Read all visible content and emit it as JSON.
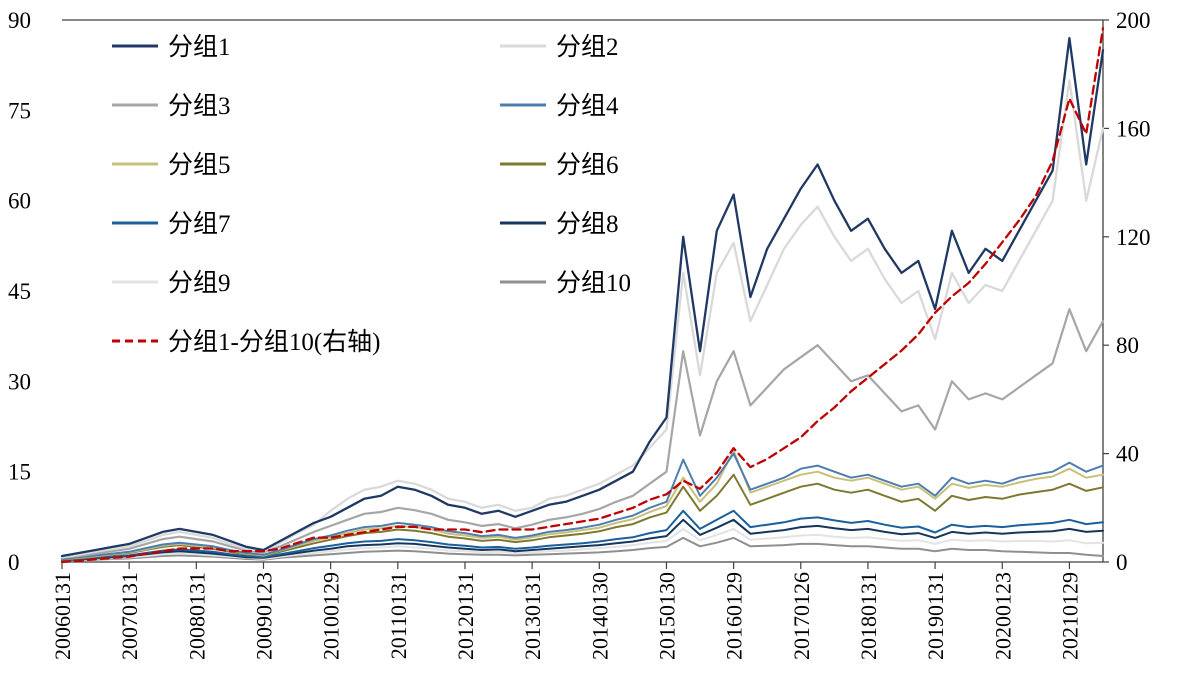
{
  "page": {
    "background": "#FFFFFF"
  },
  "chart_data": {
    "type": "line",
    "title": "",
    "legend_position": "top-left",
    "grid": false,
    "x_count": 63,
    "x_ticks_every": 4,
    "x_tick_labels": [
      "20060131",
      "20070131",
      "20080131",
      "20090123",
      "20100129",
      "20110131",
      "20120131",
      "20130131",
      "20140130",
      "20150130",
      "20160129",
      "20170126",
      "20180131",
      "20190131",
      "20200123",
      "20210129"
    ],
    "left_axis": {
      "min": 0,
      "max": 90,
      "ticks": [
        0,
        15,
        30,
        45,
        60,
        75,
        90
      ]
    },
    "right_axis": {
      "min": 0,
      "max": 200,
      "ticks": [
        0,
        40,
        80,
        120,
        160,
        200
      ]
    },
    "series": [
      {
        "name": "分组1",
        "color": "#1F3864",
        "axis": "left",
        "dashed": false,
        "width": 2.3,
        "values": [
          1.0,
          1.5,
          2.0,
          2.5,
          3.0,
          4.0,
          5.0,
          5.5,
          5.0,
          4.5,
          3.5,
          2.5,
          2.0,
          3.5,
          5.0,
          6.5,
          7.5,
          9.0,
          10.5,
          11.0,
          12.5,
          12.0,
          11.0,
          9.5,
          9.0,
          8.0,
          8.5,
          7.5,
          8.5,
          9.5,
          10.0,
          11.0,
          12.0,
          13.5,
          15.0,
          20.0,
          24.0,
          54.0,
          35.0,
          55.0,
          61.0,
          44.0,
          52.0,
          57.0,
          62.0,
          66.0,
          60.0,
          55.0,
          57.0,
          52.0,
          48.0,
          50.0,
          42.0,
          55.0,
          48.0,
          52.0,
          50.0,
          55.0,
          60.0,
          65.0,
          87.0,
          66.0,
          85.0
        ]
      },
      {
        "name": "分组2",
        "color": "#D9D9D9",
        "axis": "left",
        "dashed": false,
        "width": 2.3,
        "values": [
          0.8,
          1.2,
          1.7,
          2.2,
          2.6,
          3.5,
          4.5,
          5.0,
          4.5,
          4.0,
          3.0,
          2.2,
          1.8,
          3.2,
          4.8,
          6.2,
          8.5,
          10.5,
          12.0,
          12.5,
          13.5,
          13.0,
          12.0,
          10.5,
          10.0,
          9.0,
          9.5,
          8.5,
          9.0,
          10.5,
          11.0,
          12.0,
          13.0,
          14.5,
          16.0,
          19.0,
          22.0,
          48.0,
          31.0,
          48.0,
          53.0,
          40.0,
          46.0,
          52.0,
          56.0,
          59.0,
          54.0,
          50.0,
          52.0,
          47.0,
          43.0,
          45.0,
          37.0,
          48.0,
          43.0,
          46.0,
          45.0,
          50.0,
          55.0,
          60.0,
          80.0,
          60.0,
          72.0
        ]
      },
      {
        "name": "分组3",
        "color": "#A6A6A6",
        "axis": "left",
        "dashed": false,
        "width": 2.2,
        "values": [
          0.7,
          1.0,
          1.4,
          1.8,
          2.2,
          3.0,
          3.8,
          4.2,
          3.8,
          3.4,
          2.6,
          1.9,
          1.6,
          2.6,
          3.8,
          5.0,
          6.0,
          7.0,
          8.0,
          8.3,
          9.0,
          8.6,
          8.0,
          7.0,
          6.6,
          6.0,
          6.3,
          5.6,
          6.2,
          7.0,
          7.4,
          8.0,
          8.8,
          10.0,
          11.0,
          13.0,
          15.0,
          35.0,
          21.0,
          30.0,
          35.0,
          26.0,
          29.0,
          32.0,
          34.0,
          36.0,
          33.0,
          30.0,
          31.0,
          28.0,
          25.0,
          26.0,
          22.0,
          30.0,
          27.0,
          28.0,
          27.0,
          29.0,
          31.0,
          33.0,
          42.0,
          35.0,
          40.0
        ]
      },
      {
        "name": "分组4",
        "color": "#4D7EAF",
        "axis": "left",
        "dashed": false,
        "width": 2,
        "values": [
          0.5,
          0.8,
          1.1,
          1.4,
          1.7,
          2.3,
          2.9,
          3.2,
          2.9,
          2.6,
          2.0,
          1.5,
          1.2,
          2.0,
          2.9,
          3.8,
          4.4,
          5.2,
          5.8,
          6.0,
          6.5,
          6.2,
          5.8,
          5.1,
          4.8,
          4.3,
          4.5,
          4.0,
          4.4,
          5.0,
          5.3,
          5.7,
          6.2,
          7.0,
          7.7,
          9.0,
          10.0,
          17.0,
          11.0,
          14.0,
          18.0,
          12.0,
          13.0,
          14.0,
          15.5,
          16.0,
          15.0,
          14.0,
          14.5,
          13.5,
          12.5,
          13.0,
          11.0,
          14.0,
          13.0,
          13.5,
          13.0,
          14.0,
          14.5,
          15.0,
          16.5,
          15.0,
          16.0
        ]
      },
      {
        "name": "分组5",
        "color": "#C8BF7B",
        "axis": "left",
        "dashed": false,
        "width": 2,
        "values": [
          0.5,
          0.7,
          1.0,
          1.3,
          1.6,
          2.1,
          2.7,
          3.0,
          2.7,
          2.4,
          1.9,
          1.4,
          1.1,
          1.9,
          2.7,
          3.5,
          4.1,
          4.8,
          5.4,
          5.6,
          6.0,
          5.8,
          5.4,
          4.7,
          4.4,
          4.0,
          4.2,
          3.7,
          4.1,
          4.6,
          4.9,
          5.3,
          5.7,
          6.5,
          7.1,
          8.3,
          9.3,
          14.0,
          10.0,
          13.0,
          18.5,
          11.5,
          12.5,
          13.5,
          14.5,
          15.0,
          14.0,
          13.5,
          14.0,
          13.0,
          12.0,
          12.5,
          10.5,
          13.0,
          12.3,
          12.8,
          12.5,
          13.2,
          13.8,
          14.2,
          15.5,
          14.0,
          14.5
        ]
      },
      {
        "name": "分组6",
        "color": "#7E7830",
        "axis": "left",
        "dashed": false,
        "width": 2,
        "values": [
          0.4,
          0.6,
          0.9,
          1.2,
          1.5,
          2.0,
          2.5,
          2.8,
          2.5,
          2.2,
          1.7,
          1.3,
          1.0,
          1.7,
          2.4,
          3.1,
          3.7,
          4.3,
          4.8,
          5.0,
          5.4,
          5.2,
          4.8,
          4.2,
          3.9,
          3.5,
          3.7,
          3.3,
          3.6,
          4.1,
          4.4,
          4.7,
          5.1,
          5.8,
          6.3,
          7.4,
          8.2,
          12.5,
          8.5,
          11.0,
          14.5,
          9.5,
          10.5,
          11.5,
          12.5,
          13.0,
          12.0,
          11.5,
          12.0,
          11.0,
          10.0,
          10.5,
          8.5,
          11.0,
          10.3,
          10.8,
          10.5,
          11.2,
          11.6,
          12.0,
          13.0,
          11.8,
          12.4
        ]
      },
      {
        "name": "分组7",
        "color": "#19609C",
        "axis": "left",
        "dashed": false,
        "width": 2,
        "values": [
          0.3,
          0.5,
          0.7,
          0.9,
          1.1,
          1.5,
          1.9,
          2.1,
          1.9,
          1.7,
          1.3,
          1.0,
          0.8,
          1.3,
          1.8,
          2.3,
          2.7,
          3.1,
          3.4,
          3.5,
          3.8,
          3.6,
          3.3,
          2.9,
          2.7,
          2.4,
          2.5,
          2.2,
          2.4,
          2.7,
          2.9,
          3.1,
          3.4,
          3.8,
          4.1,
          4.8,
          5.3,
          8.5,
          5.5,
          7.0,
          8.5,
          5.8,
          6.2,
          6.6,
          7.2,
          7.4,
          6.9,
          6.5,
          6.8,
          6.2,
          5.7,
          5.9,
          4.9,
          6.2,
          5.8,
          6.0,
          5.8,
          6.1,
          6.3,
          6.5,
          7.0,
          6.3,
          6.6
        ]
      },
      {
        "name": "分组8",
        "color": "#16365C",
        "axis": "left",
        "dashed": false,
        "width": 2,
        "values": [
          0.3,
          0.4,
          0.6,
          0.8,
          1.0,
          1.3,
          1.6,
          1.8,
          1.6,
          1.4,
          1.1,
          0.8,
          0.7,
          1.1,
          1.5,
          1.9,
          2.2,
          2.6,
          2.8,
          2.9,
          3.1,
          3.0,
          2.7,
          2.4,
          2.2,
          2.0,
          2.1,
          1.8,
          2.0,
          2.2,
          2.4,
          2.6,
          2.8,
          3.1,
          3.4,
          3.9,
          4.3,
          7.0,
          4.5,
          5.7,
          7.0,
          4.7,
          5.0,
          5.3,
          5.8,
          6.0,
          5.6,
          5.3,
          5.5,
          5.0,
          4.6,
          4.8,
          4.0,
          5.0,
          4.7,
          4.9,
          4.7,
          4.9,
          5.0,
          5.1,
          5.5,
          5.0,
          5.2
        ]
      },
      {
        "name": "分组9",
        "color": "#E3E3E3",
        "axis": "left",
        "dashed": false,
        "width": 2,
        "values": [
          0.2,
          0.3,
          0.5,
          0.6,
          0.8,
          1.0,
          1.3,
          1.4,
          1.3,
          1.1,
          0.9,
          0.7,
          0.5,
          0.9,
          1.2,
          1.5,
          1.8,
          2.1,
          2.3,
          2.4,
          2.6,
          2.4,
          2.2,
          1.9,
          1.8,
          1.6,
          1.7,
          1.5,
          1.6,
          1.8,
          1.9,
          2.1,
          2.3,
          2.5,
          2.8,
          3.2,
          3.5,
          5.5,
          3.6,
          4.5,
          5.5,
          3.7,
          3.9,
          4.1,
          4.4,
          4.5,
          4.2,
          4.0,
          4.1,
          3.8,
          3.5,
          3.6,
          3.0,
          3.7,
          3.5,
          3.6,
          3.4,
          3.5,
          3.5,
          3.4,
          3.6,
          3.1,
          3.2
        ]
      },
      {
        "name": "分组10",
        "color": "#8F8F8F",
        "axis": "left",
        "dashed": false,
        "width": 2,
        "values": [
          0.2,
          0.3,
          0.4,
          0.5,
          0.6,
          0.8,
          1.0,
          1.1,
          1.0,
          0.9,
          0.7,
          0.5,
          0.4,
          0.7,
          0.9,
          1.1,
          1.3,
          1.5,
          1.7,
          1.8,
          1.9,
          1.8,
          1.6,
          1.4,
          1.3,
          1.2,
          1.2,
          1.1,
          1.2,
          1.3,
          1.4,
          1.5,
          1.6,
          1.8,
          2.0,
          2.3,
          2.5,
          4.0,
          2.6,
          3.2,
          4.0,
          2.6,
          2.7,
          2.8,
          3.0,
          3.0,
          2.8,
          2.6,
          2.6,
          2.4,
          2.2,
          2.2,
          1.8,
          2.2,
          2.0,
          2.0,
          1.8,
          1.7,
          1.6,
          1.5,
          1.5,
          1.2,
          1.0
        ]
      },
      {
        "name": "分组1-分组10(右轴)",
        "color": "#C00000",
        "axis": "right",
        "dashed": true,
        "width": 2.3,
        "values": [
          0,
          0.5,
          1,
          1.5,
          2,
          3,
          4,
          5,
          5,
          5,
          4,
          4,
          4,
          5,
          7,
          9,
          9,
          10,
          11,
          12,
          13,
          13,
          12,
          12,
          12,
          11,
          12,
          12,
          12,
          13,
          14,
          15,
          16,
          18,
          20,
          23,
          25,
          30,
          27,
          33,
          42,
          35,
          38,
          42,
          46,
          52,
          57,
          63,
          68,
          73,
          78,
          84,
          92,
          98,
          103,
          110,
          118,
          126,
          135,
          148,
          171,
          158,
          197
        ]
      }
    ]
  }
}
